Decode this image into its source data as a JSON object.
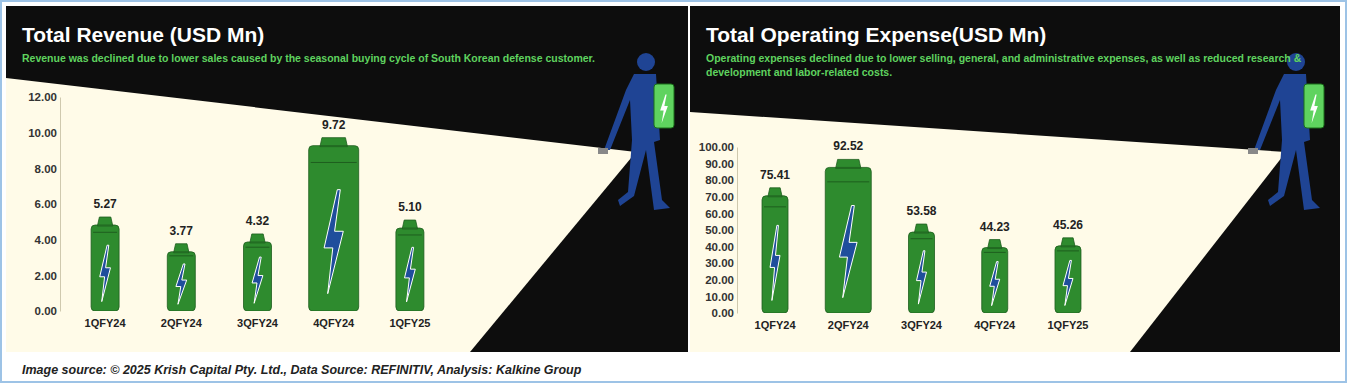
{
  "chart_data": [
    {
      "type": "bar",
      "title": "Total Revenue (USD Mn)",
      "subtitle": "Revenue was declined due to lower sales caused by the seasonal buying cycle of South Korean defense customer.",
      "categories": [
        "1QFY24",
        "2QFY24",
        "3QFY24",
        "4QFY24",
        "1QFY25"
      ],
      "values": [
        5.27,
        3.77,
        4.32,
        9.72,
        5.1
      ],
      "value_labels": [
        "5.27",
        "3.77",
        "4.32",
        "9.72",
        "5.10"
      ],
      "color": "#2e8b2e",
      "ylim": [
        0,
        12
      ],
      "yticks": [
        {
          "value": 0,
          "label": "0.00"
        },
        {
          "value": 2,
          "label": "2.00"
        },
        {
          "value": 4,
          "label": "4.00"
        },
        {
          "value": 6,
          "label": "6.00"
        },
        {
          "value": 8,
          "label": "8.00"
        },
        {
          "value": 10,
          "label": "10.00"
        },
        {
          "value": 12,
          "label": "12.00"
        }
      ],
      "grid": false,
      "data_labels": true
    },
    {
      "type": "bar",
      "title": "Total Operating Expense(USD Mn)",
      "subtitle": "Operating expenses declined due to lower selling, general, and administrative expenses, as well as reduced research & development and labor-related costs.",
      "categories": [
        "1QFY24",
        "2QFY24",
        "3QFY24",
        "4QFY24",
        "1QFY25"
      ],
      "values": [
        75.41,
        92.52,
        53.58,
        44.23,
        45.26
      ],
      "color": "#2e8b2e",
      "ylim": [
        0,
        100
      ],
      "yticks": [
        {
          "value": 0,
          "label": "0.00"
        },
        {
          "value": 10,
          "label": "10.00"
        },
        {
          "value": 20,
          "label": "20.00"
        },
        {
          "value": 30,
          "label": "30.00"
        },
        {
          "value": 40,
          "label": "40.00"
        },
        {
          "value": 50,
          "label": "50.00"
        },
        {
          "value": 60,
          "label": "60.00"
        },
        {
          "value": 70,
          "label": "70.00"
        },
        {
          "value": 80,
          "label": "80.00"
        },
        {
          "value": 90,
          "label": "90.00"
        },
        {
          "value": 100,
          "label": "100.00"
        }
      ],
      "grid": false,
      "data_labels": true
    }
  ],
  "source": "Image source: © 2025 Krish Capital Pty. Ltd., Data Source: REFINITIV, Analysis: Kalkine Group"
}
